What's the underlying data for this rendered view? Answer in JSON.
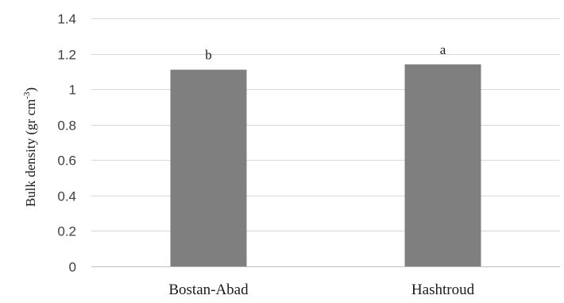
{
  "chart_data": {
    "type": "bar",
    "categories": [
      "Bostan-Abad",
      "Hashtroud"
    ],
    "values": [
      1.11,
      1.14
    ],
    "data_labels": [
      "b",
      "a"
    ],
    "ylabel": {
      "main": "Bulk density (gr cm",
      "sup": "-3",
      "close": ")"
    },
    "ylim": [
      0,
      1.4
    ],
    "yticks": [
      "0",
      "0.2",
      "0.4",
      "0.6",
      "0.8",
      "1",
      "1.2",
      "1.4"
    ],
    "grid": true,
    "legend": "none",
    "colors": {
      "bar": "#7f7f7f",
      "grid": "#d9d9d9",
      "axis": "#bfbfbf"
    }
  }
}
